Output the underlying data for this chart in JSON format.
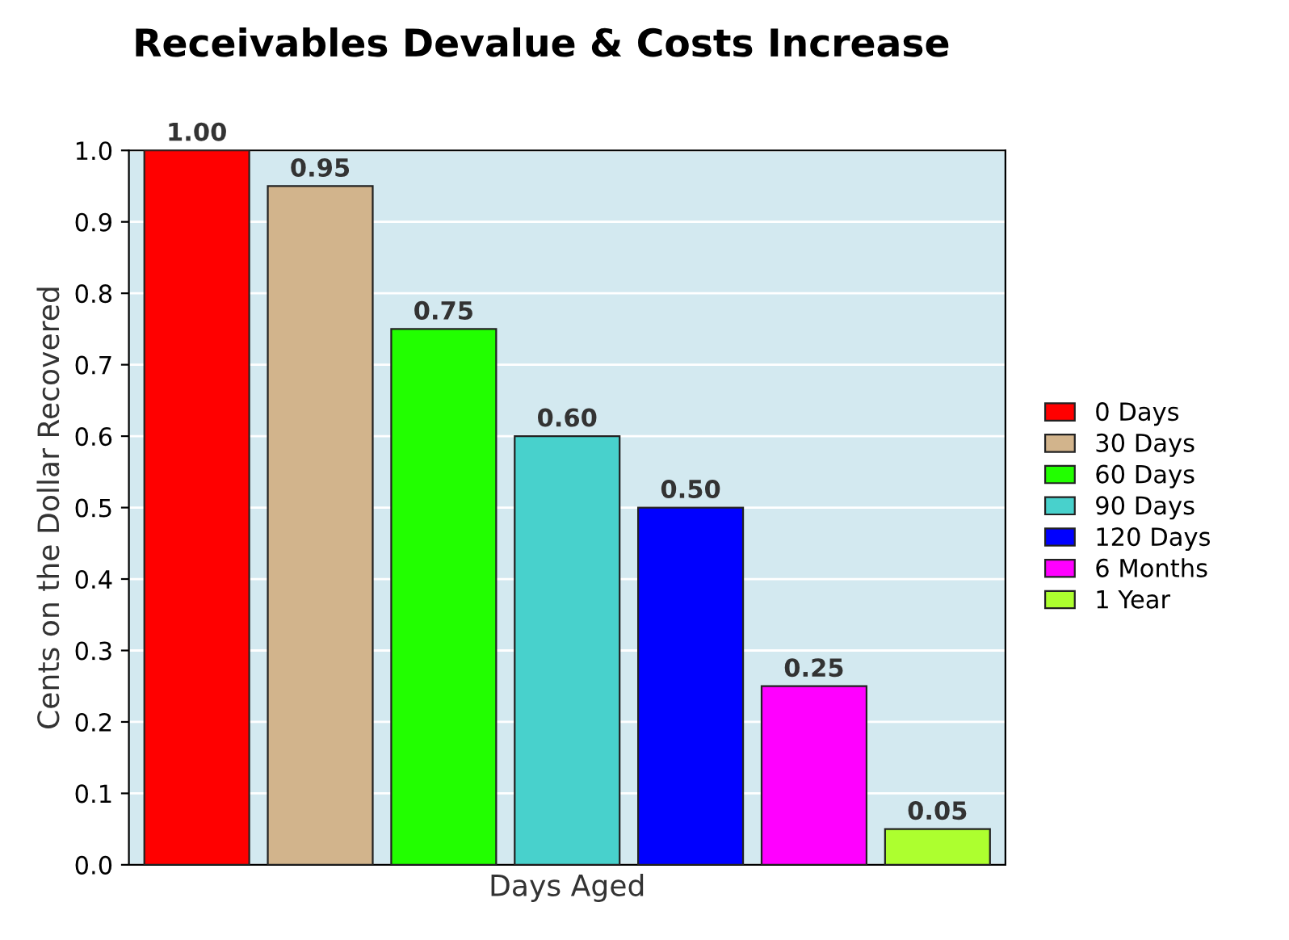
{
  "chart_data": {
    "type": "bar",
    "title": "Receivables Devalue & Costs Increase",
    "xlabel": "Days Aged",
    "ylabel": "Cents on the Dollar Recovered",
    "categories": [
      null,
      null,
      null,
      null,
      null,
      null,
      null
    ],
    "series": [
      {
        "name": "0 Days",
        "color": "#ff0000",
        "values": [
          1.0,
          null,
          null,
          null,
          null,
          null,
          null
        ],
        "value_labels": [
          "1.00",
          null,
          null,
          null,
          null,
          null,
          null
        ]
      },
      {
        "name": "30 Days",
        "color": "#d2b48c",
        "values": [
          null,
          0.95,
          null,
          null,
          null,
          null,
          null
        ],
        "value_labels": [
          null,
          "0.95",
          null,
          null,
          null,
          null,
          null
        ]
      },
      {
        "name": "60 Days",
        "color": "#22ff00",
        "values": [
          null,
          null,
          0.75,
          null,
          null,
          null,
          null
        ],
        "value_labels": [
          null,
          null,
          "0.75",
          null,
          null,
          null,
          null
        ]
      },
      {
        "name": "90 Days",
        "color": "#48d1cc",
        "values": [
          null,
          null,
          null,
          0.6,
          null,
          null,
          null
        ],
        "value_labels": [
          null,
          null,
          null,
          "0.60",
          null,
          null,
          null
        ]
      },
      {
        "name": "120 Days",
        "color": "#0000ff",
        "values": [
          null,
          null,
          null,
          null,
          0.5,
          null,
          null
        ],
        "value_labels": [
          null,
          null,
          null,
          null,
          "0.50",
          null,
          null
        ]
      },
      {
        "name": "6 Months",
        "color": "#ff00ff",
        "values": [
          null,
          null,
          null,
          null,
          null,
          0.25,
          null
        ],
        "value_labels": [
          null,
          null,
          null,
          null,
          null,
          "0.25",
          null
        ]
      },
      {
        "name": "1 Year",
        "color": "#adff2f",
        "values": [
          null,
          null,
          null,
          null,
          null,
          null,
          0.05
        ],
        "value_labels": [
          null,
          null,
          null,
          null,
          null,
          null,
          "0.05"
        ]
      }
    ],
    "ylim": [
      0,
      1.0
    ],
    "yticks": [
      {
        "value": 0,
        "label": "0.0"
      },
      {
        "value": 0.1,
        "label": "0.1"
      },
      {
        "value": 0.2,
        "label": "0.2"
      },
      {
        "value": 0.3,
        "label": "0.3"
      },
      {
        "value": 0.4,
        "label": "0.4"
      },
      {
        "value": 0.5,
        "label": "0.5"
      },
      {
        "value": 0.6,
        "label": "0.6"
      },
      {
        "value": 0.7,
        "label": "0.7"
      },
      {
        "value": 0.8,
        "label": "0.8"
      },
      {
        "value": 0.9,
        "label": "0.9"
      },
      {
        "value": 1.0,
        "label": "1.0"
      }
    ],
    "grid": "y",
    "legend": "right",
    "tick_labels": "y"
  }
}
